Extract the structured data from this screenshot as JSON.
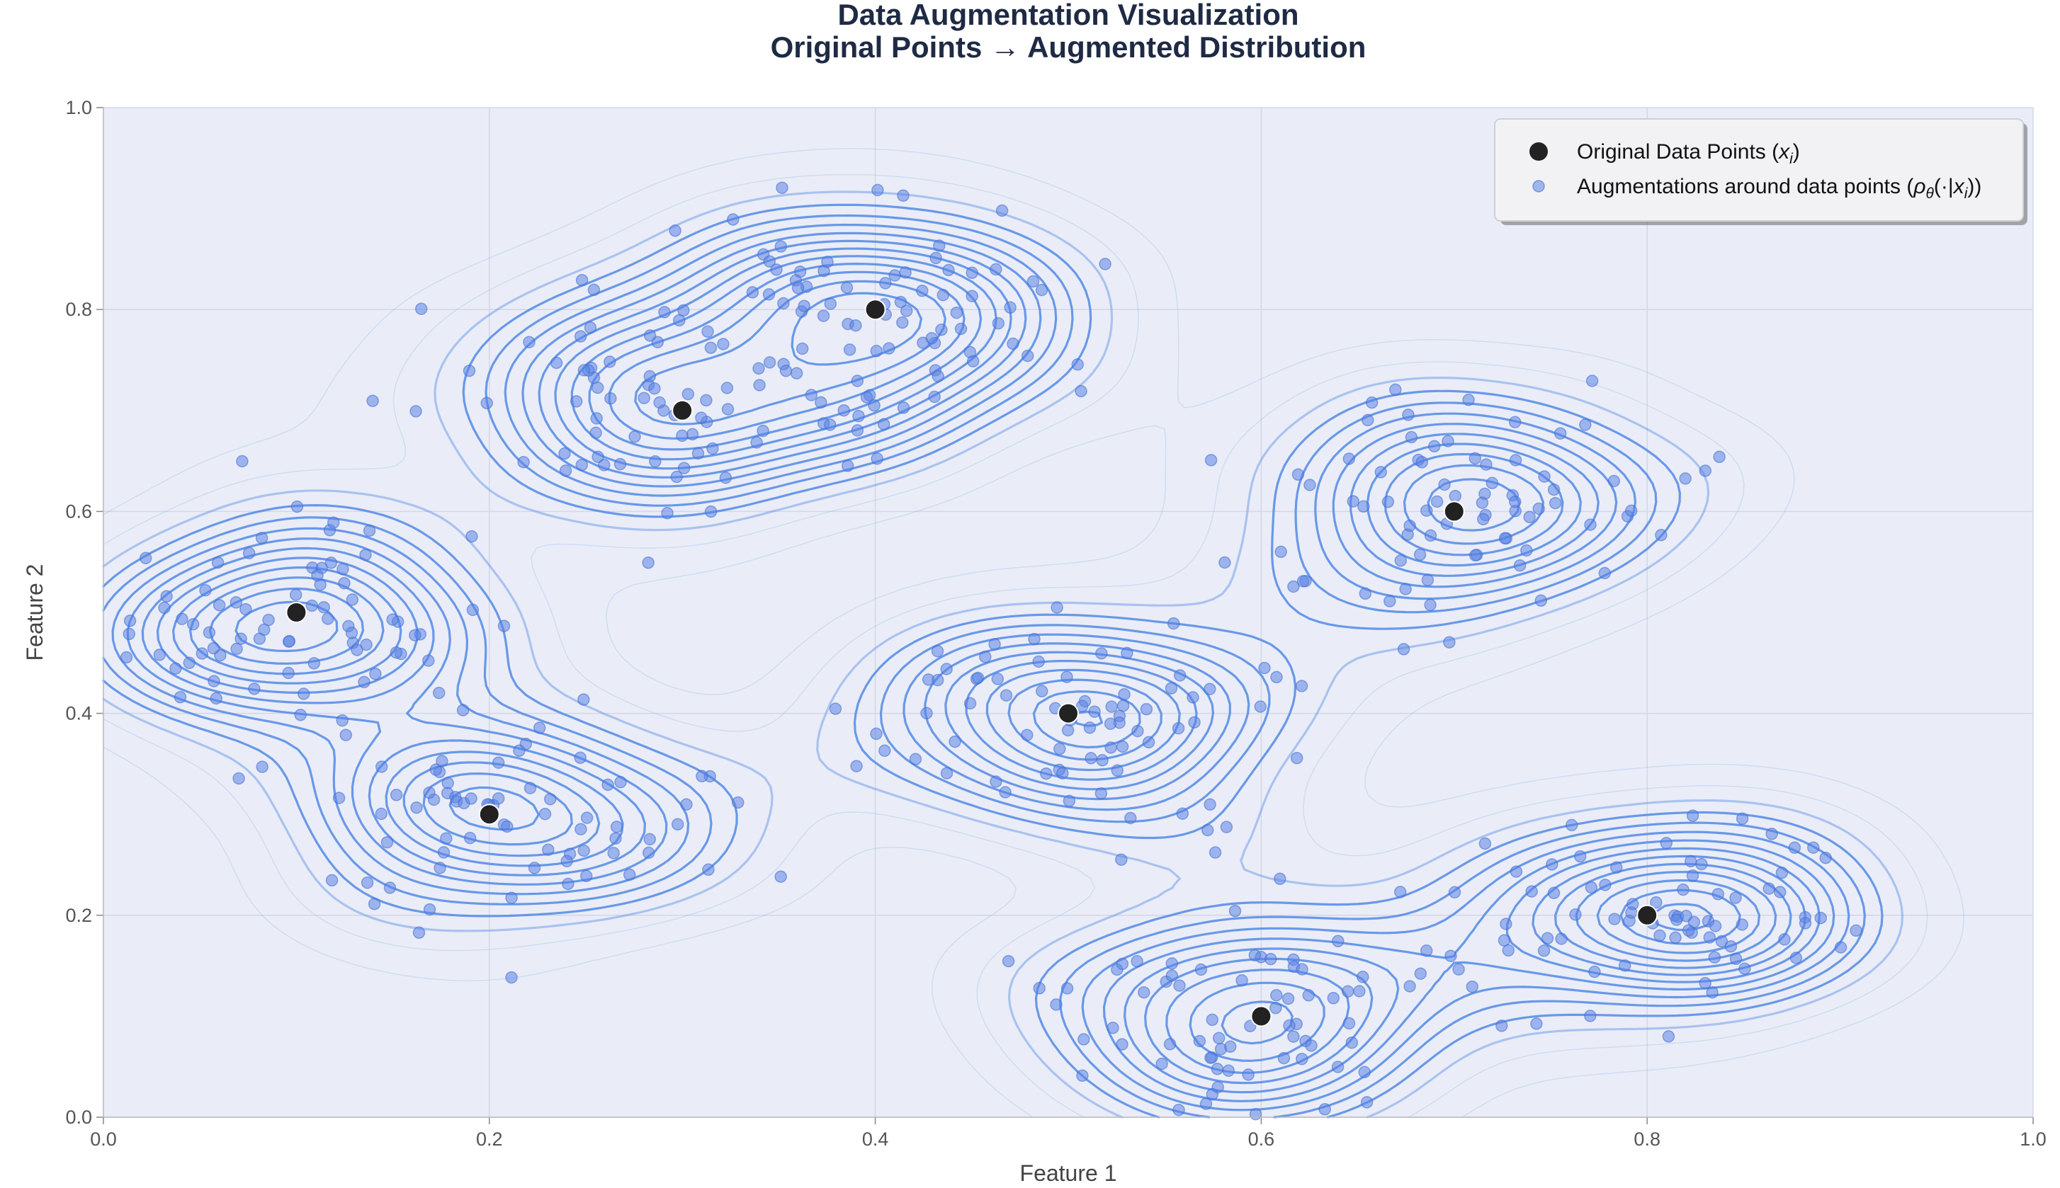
{
  "chart_data": {
    "type": "scatter",
    "title": "Data Augmentation Visualization",
    "subtitle": "Original Points → Augmented Distribution",
    "xlabel": "Feature 1",
    "ylabel": "Feature 2",
    "xlim": [
      0,
      1
    ],
    "ylim": [
      0,
      1
    ],
    "x_ticks": [
      "0.0",
      "0.2",
      "0.4",
      "0.6",
      "0.8",
      "1.0"
    ],
    "y_ticks": [
      "0.0",
      "0.2",
      "0.4",
      "0.6",
      "0.8",
      "1.0"
    ],
    "grid": true,
    "legend_position": "top-right",
    "colors": {
      "background": "#eaedf7",
      "contour": "#5b8ee6",
      "augment_point": "#5b84e6",
      "original_point": "#222222"
    },
    "series": [
      {
        "name": "Original Data Points ($x_i$)",
        "legend_text": "Original Data Points (",
        "legend_math": "x",
        "legend_sub": "i",
        "legend_tail": ")",
        "points": [
          [
            0.1,
            0.5
          ],
          [
            0.2,
            0.3
          ],
          [
            0.3,
            0.7
          ],
          [
            0.4,
            0.8
          ],
          [
            0.5,
            0.4
          ],
          [
            0.6,
            0.1
          ],
          [
            0.7,
            0.6
          ],
          [
            0.8,
            0.2
          ]
        ]
      },
      {
        "name": "Augmentations around data points ($\\rho_\\theta(\\cdot|x_i)$)",
        "legend_text": "Augmentations around data points (",
        "legend_math": "ρ",
        "legend_sub": "θ",
        "legend_mid": "(·|",
        "legend_math2": "x",
        "legend_sub2": "i",
        "legend_tail": "))",
        "std_x": 0.055,
        "std_y": 0.055,
        "points_per_center": 75
      }
    ]
  }
}
